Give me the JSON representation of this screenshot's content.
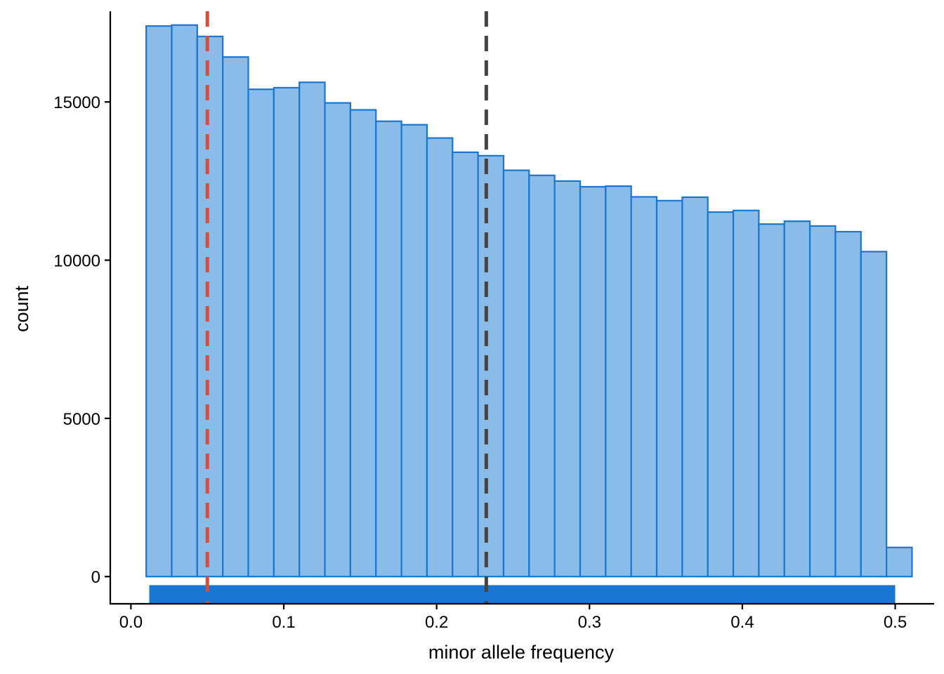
{
  "chart_data": {
    "type": "bar",
    "subtype": "histogram",
    "xlabel": "minor allele frequency",
    "ylabel": "count",
    "xlim": [
      -0.0135,
      0.5255
    ],
    "ylim": [
      -860,
      18000
    ],
    "x_ticks": [
      0.0,
      0.1,
      0.2,
      0.3,
      0.4,
      0.5
    ],
    "x_tick_labels": [
      "0.0",
      "0.1",
      "0.2",
      "0.3",
      "0.4",
      "0.5"
    ],
    "y_ticks": [
      0,
      5000,
      10000,
      15000
    ],
    "y_tick_labels": [
      "0",
      "5000",
      "10000",
      "15000"
    ],
    "grid": false,
    "bin_width": 0.0167,
    "bins": [
      {
        "x0": 0.01,
        "x1": 0.0267,
        "count": 17400
      },
      {
        "x0": 0.0267,
        "x1": 0.0434,
        "count": 17430
      },
      {
        "x0": 0.0434,
        "x1": 0.0601,
        "count": 17070
      },
      {
        "x0": 0.0601,
        "x1": 0.0768,
        "count": 16420
      },
      {
        "x0": 0.0768,
        "x1": 0.0935,
        "count": 15400
      },
      {
        "x0": 0.0935,
        "x1": 0.1102,
        "count": 15450
      },
      {
        "x0": 0.1102,
        "x1": 0.1269,
        "count": 15620
      },
      {
        "x0": 0.1269,
        "x1": 0.1436,
        "count": 14970
      },
      {
        "x0": 0.1436,
        "x1": 0.1603,
        "count": 14750
      },
      {
        "x0": 0.1603,
        "x1": 0.177,
        "count": 14390
      },
      {
        "x0": 0.177,
        "x1": 0.1937,
        "count": 14280
      },
      {
        "x0": 0.1937,
        "x1": 0.2104,
        "count": 13860
      },
      {
        "x0": 0.2104,
        "x1": 0.2271,
        "count": 13410
      },
      {
        "x0": 0.2271,
        "x1": 0.2438,
        "count": 13300
      },
      {
        "x0": 0.2438,
        "x1": 0.2605,
        "count": 12840
      },
      {
        "x0": 0.2605,
        "x1": 0.2772,
        "count": 12680
      },
      {
        "x0": 0.2772,
        "x1": 0.2939,
        "count": 12500
      },
      {
        "x0": 0.2939,
        "x1": 0.3106,
        "count": 12320
      },
      {
        "x0": 0.3106,
        "x1": 0.3273,
        "count": 12340
      },
      {
        "x0": 0.3273,
        "x1": 0.344,
        "count": 12000
      },
      {
        "x0": 0.344,
        "x1": 0.3607,
        "count": 11880
      },
      {
        "x0": 0.3607,
        "x1": 0.3774,
        "count": 11990
      },
      {
        "x0": 0.3774,
        "x1": 0.3941,
        "count": 11520
      },
      {
        "x0": 0.3941,
        "x1": 0.4108,
        "count": 11570
      },
      {
        "x0": 0.4108,
        "x1": 0.4275,
        "count": 11140
      },
      {
        "x0": 0.4275,
        "x1": 0.4442,
        "count": 11230
      },
      {
        "x0": 0.4442,
        "x1": 0.4609,
        "count": 11080
      },
      {
        "x0": 0.4609,
        "x1": 0.4776,
        "count": 10900
      },
      {
        "x0": 0.4776,
        "x1": 0.4943,
        "count": 10270
      },
      {
        "x0": 0.4943,
        "x1": 0.511,
        "count": 920
      }
    ],
    "rug": {
      "x0": 0.012,
      "x1": 0.5,
      "y_top": -270,
      "y_bottom": -860
    },
    "reference_lines": [
      {
        "x": 0.05,
        "style": "dashed",
        "color": "#E04B35"
      },
      {
        "x": 0.2325,
        "style": "dashed",
        "color": "#444444"
      }
    ],
    "colors": {
      "bar_fill": "#89BCE9",
      "bar_stroke": "#1976D2",
      "rug_fill": "#1976D2",
      "axis": "#000000"
    }
  }
}
